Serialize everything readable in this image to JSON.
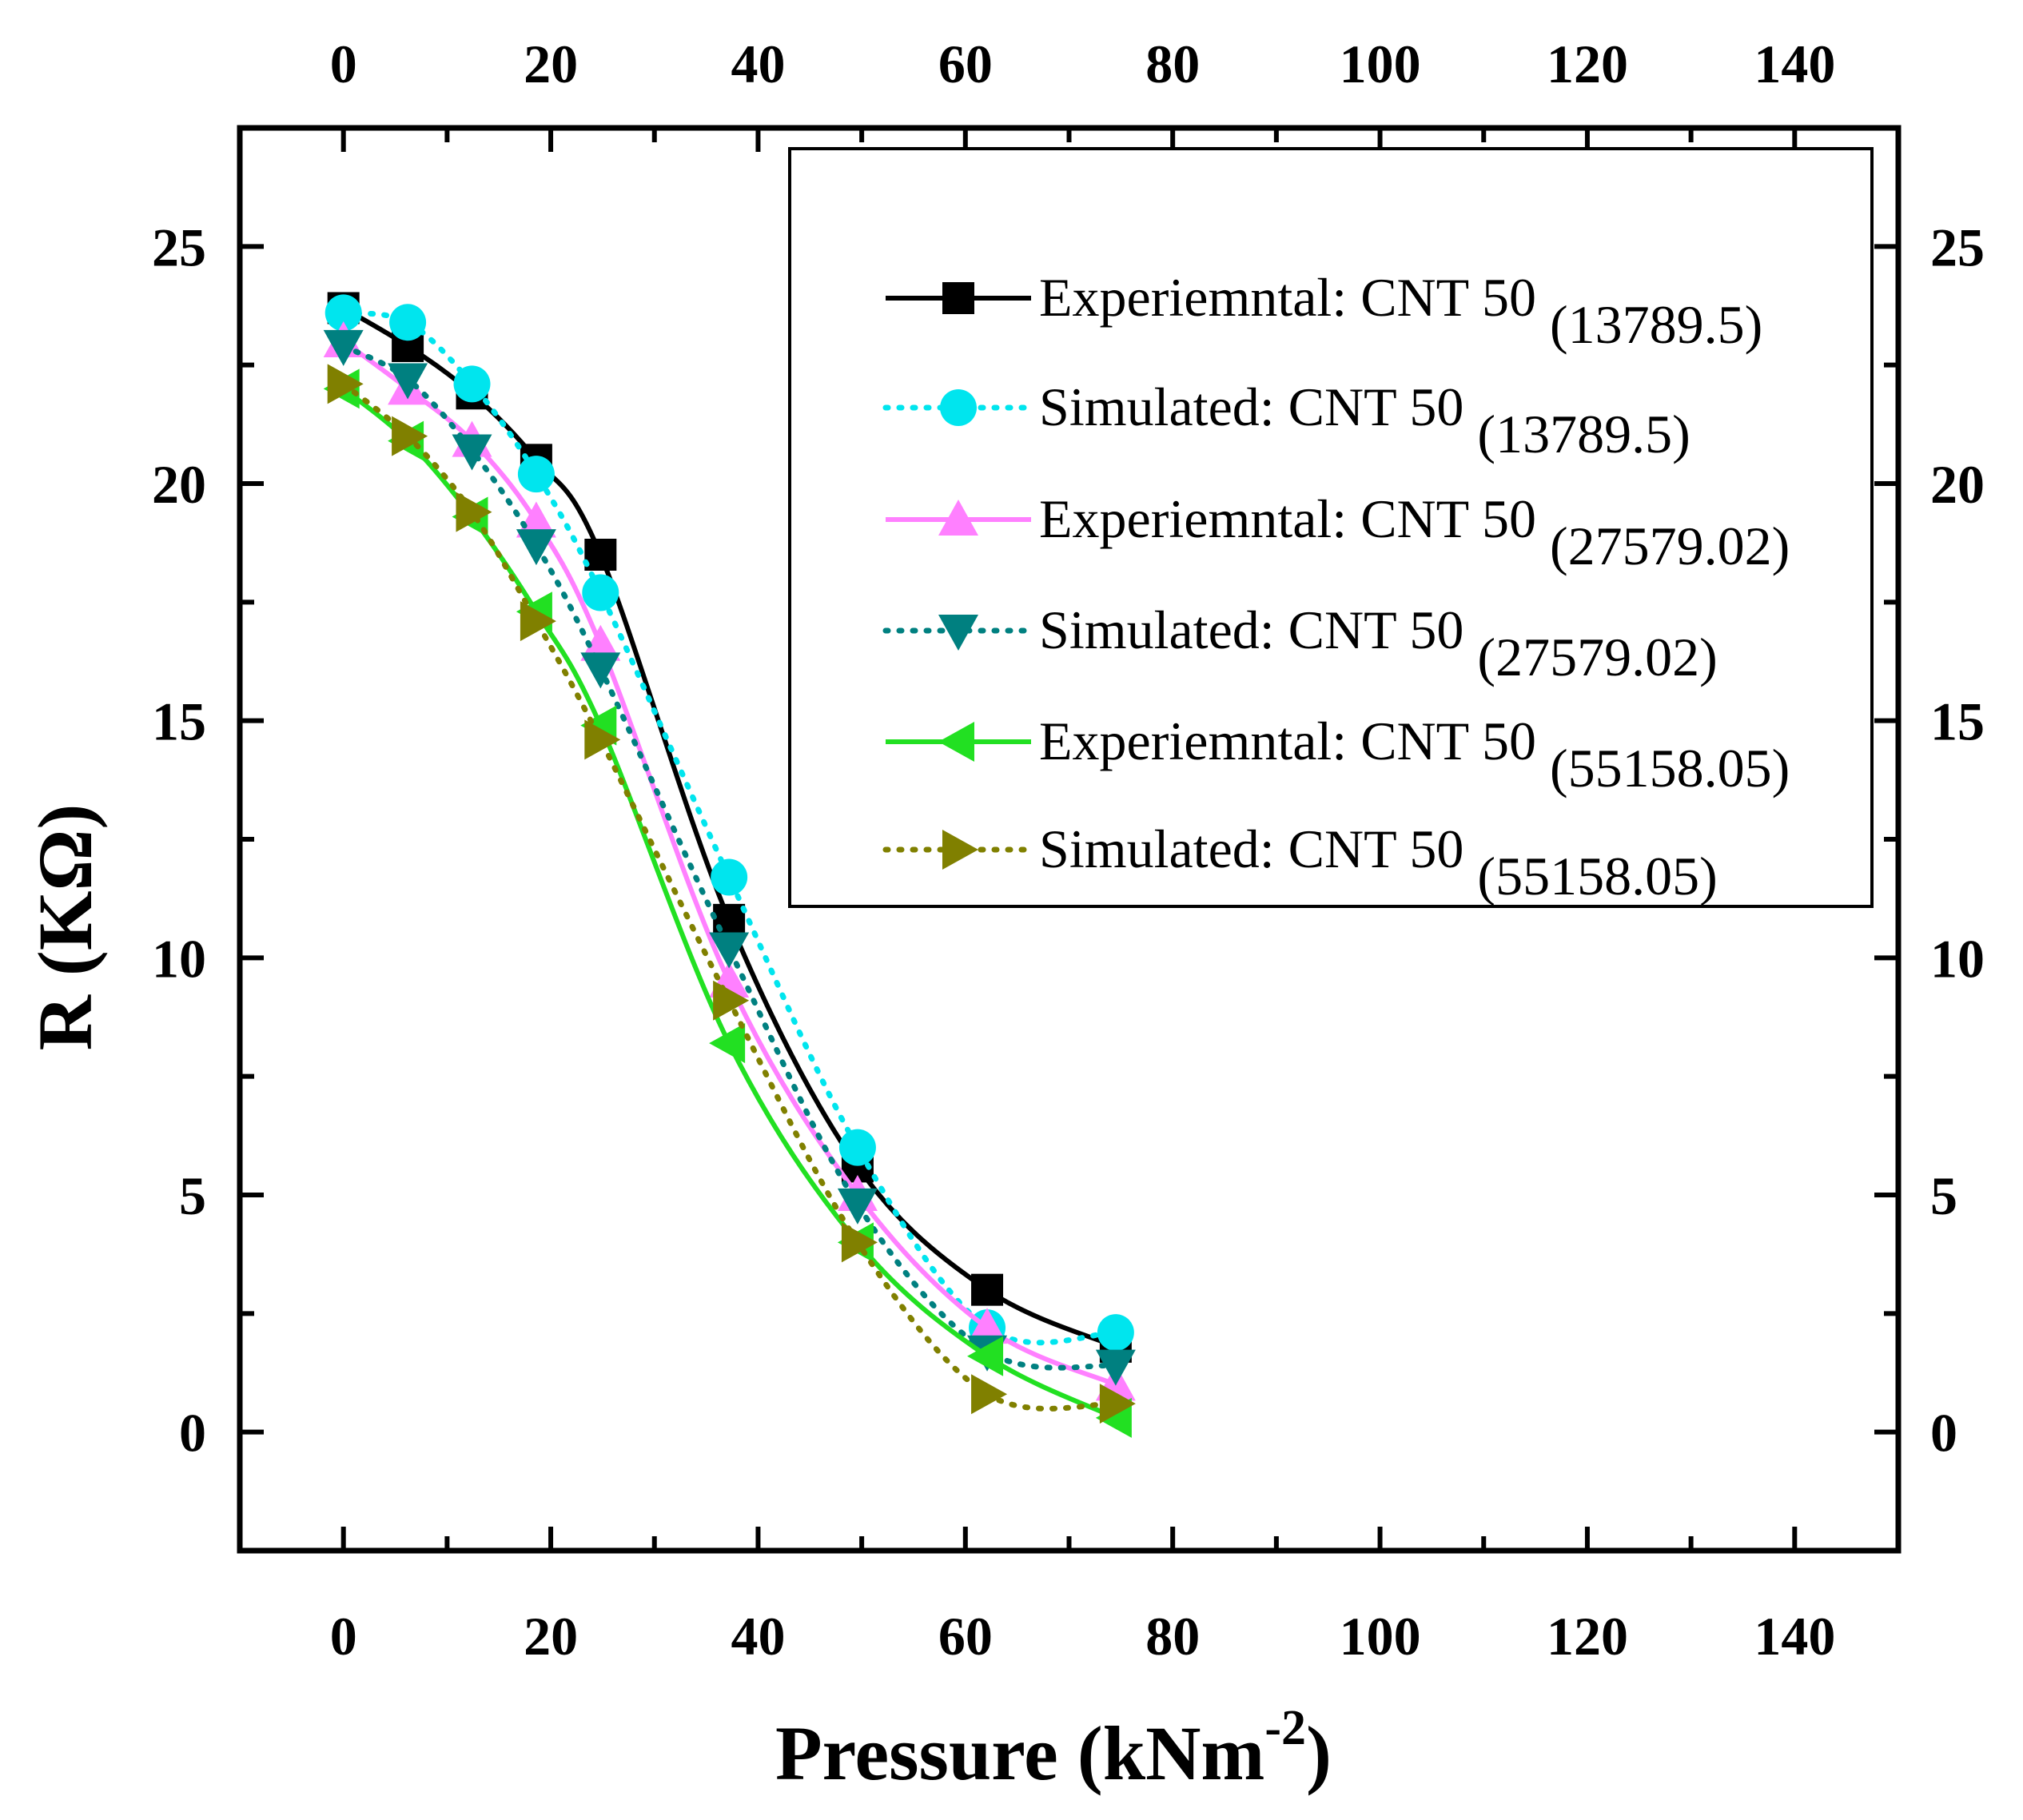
{
  "chart_data": {
    "type": "line",
    "xlabel": "Pressure (kNm",
    "xlabel_sup": "-2",
    "xlabel_end": ")",
    "ylabel": "R (KΩ)",
    "xlim": [
      -10,
      150
    ],
    "ylim": [
      -2.5,
      27.5
    ],
    "xticks": [
      0,
      20,
      40,
      60,
      80,
      100,
      120,
      140
    ],
    "xtick_labels": [
      "0",
      "20",
      "40",
      "60",
      "80",
      "100",
      "120",
      "140"
    ],
    "yticks": [
      0,
      5,
      10,
      15,
      20,
      25
    ],
    "ytick_labels": [
      "0",
      "5",
      "10",
      "15",
      "20",
      "25"
    ],
    "x": [
      0,
      6.2,
      12.4,
      18.6,
      24.8,
      37.2,
      49.6,
      62.1,
      74.5
    ],
    "legend_position": "top-right",
    "series": [
      {
        "name": "Experiemntal: CNT 50",
        "sub": "(13789.5)",
        "color": "#000000",
        "marker": "square",
        "line": "solid",
        "values": [
          23.7,
          22.9,
          21.9,
          20.5,
          18.5,
          10.8,
          5.6,
          3.0,
          1.8
        ]
      },
      {
        "name": "Simulated: CNT 50",
        "sub": "(13789.5)",
        "color": "#00e5ee",
        "marker": "circle",
        "line": "dotted",
        "values": [
          23.6,
          23.4,
          22.1,
          20.2,
          17.7,
          11.7,
          6.0,
          2.2,
          2.1
        ]
      },
      {
        "name": "Experiemntal: CNT 50",
        "sub": "(27579.02)",
        "color": "#ff80ff",
        "marker": "triangle-up",
        "line": "solid",
        "values": [
          23.0,
          22.0,
          20.9,
          19.2,
          16.6,
          9.5,
          5.0,
          2.2,
          1.0
        ]
      },
      {
        "name": "Simulated: CNT 50",
        "sub": "(27579.02)",
        "color": "#008080",
        "marker": "triangle-down",
        "line": "dotted",
        "values": [
          22.9,
          22.2,
          20.7,
          18.7,
          16.1,
          10.2,
          4.8,
          1.7,
          1.4
        ]
      },
      {
        "name": "Experiemntal: CNT 50",
        "sub": "(55158.05)",
        "color": "#22e022",
        "marker": "triangle-left",
        "line": "solid",
        "values": [
          22.0,
          20.9,
          19.3,
          17.3,
          14.9,
          8.2,
          4.0,
          1.6,
          0.3
        ]
      },
      {
        "name": "Simulated: CNT 50",
        "sub": "(55158.05)",
        "color": "#808000",
        "marker": "triangle-right",
        "line": "dotted",
        "values": [
          22.1,
          21.0,
          19.4,
          17.1,
          14.6,
          9.1,
          4.0,
          0.8,
          0.6
        ]
      }
    ]
  }
}
